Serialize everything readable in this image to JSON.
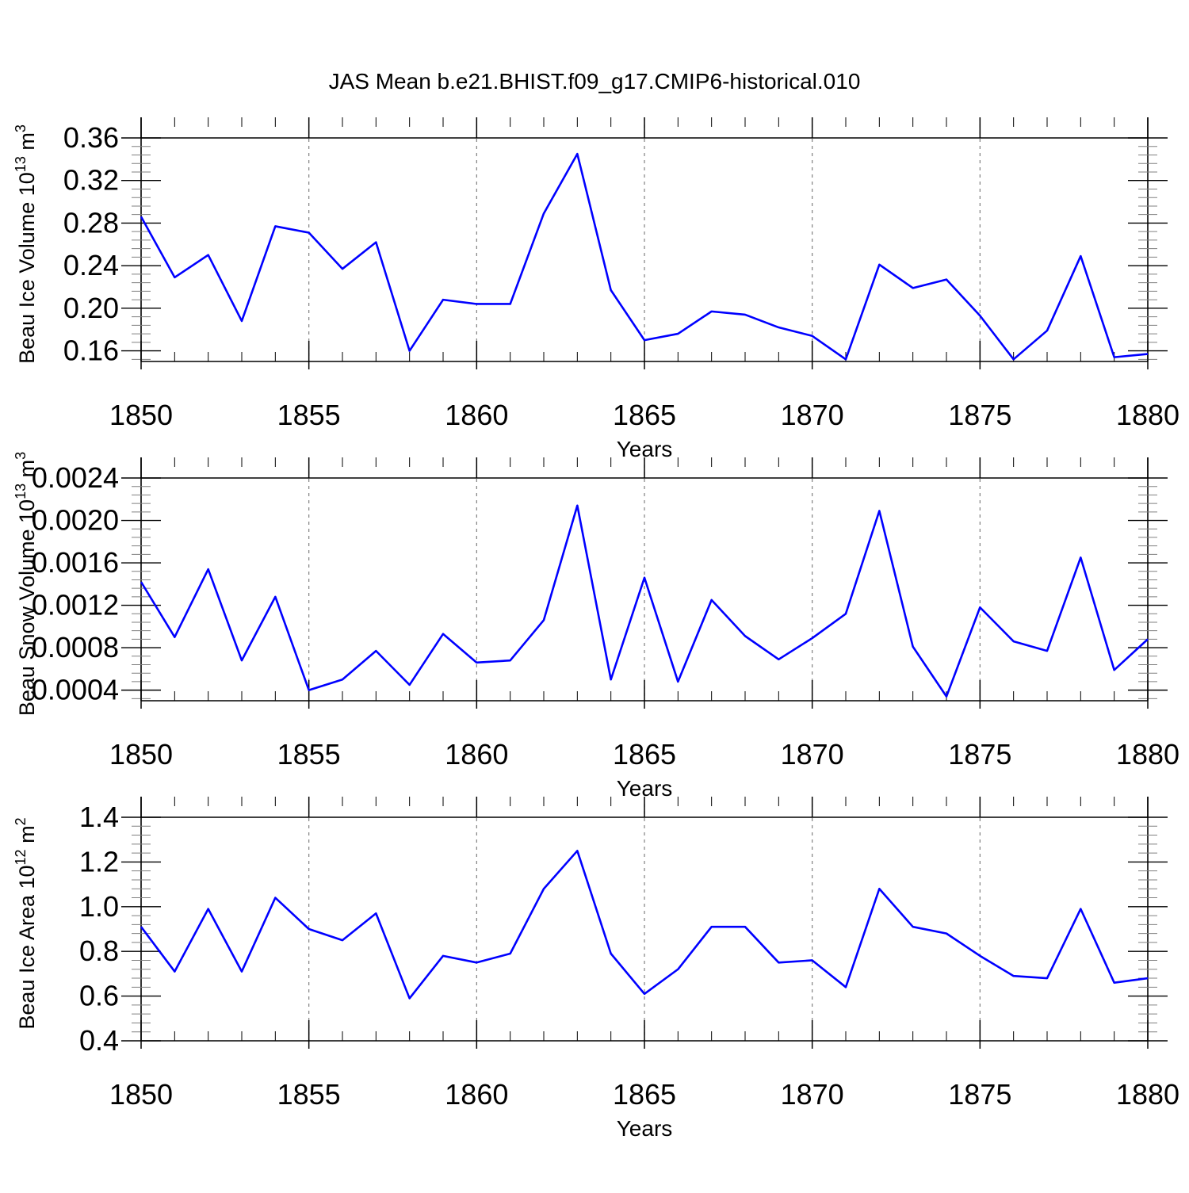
{
  "figure": {
    "title": "JAS Mean b.e21.BHIST.f09_g17.CMIP6-historical.010"
  },
  "colors": {
    "line": "#0000ff",
    "axis": "#000000",
    "grid": "#808080",
    "background": "#ffffff"
  },
  "chart_data": [
    {
      "type": "line",
      "title": "JAS Mean b.e21.BHIST.f09_g17.CMIP6-historical.010",
      "xlabel": "Years",
      "ylabel": "Beau Ice Volume 10^13 m^3",
      "ylabel_parts": {
        "prefix": "Beau Ice Volume 10",
        "sup1": "13",
        "mid": " m",
        "sup2": "3"
      },
      "xlim": [
        1850,
        1880
      ],
      "ylim": [
        0.15,
        0.36
      ],
      "xticks": [
        1850,
        1855,
        1860,
        1865,
        1870,
        1875,
        1880
      ],
      "xtick_labels": [
        "1850",
        "1855",
        "1860",
        "1865",
        "1870",
        "1875",
        "1880"
      ],
      "yticks": [
        0.16,
        0.2,
        0.24,
        0.28,
        0.32,
        0.36
      ],
      "ytick_labels": [
        "0.16",
        "0.20",
        "0.24",
        "0.28",
        "0.32",
        "0.36"
      ],
      "x": [
        1850,
        1851,
        1852,
        1853,
        1854,
        1855,
        1856,
        1857,
        1858,
        1859,
        1860,
        1861,
        1862,
        1863,
        1864,
        1865,
        1866,
        1867,
        1868,
        1869,
        1870,
        1871,
        1872,
        1873,
        1874,
        1875,
        1876,
        1877,
        1878,
        1879,
        1880
      ],
      "series": [
        {
          "name": "Beau Ice Volume",
          "values": [
            0.286,
            0.229,
            0.25,
            0.188,
            0.277,
            0.271,
            0.237,
            0.262,
            0.16,
            0.208,
            0.204,
            0.204,
            0.289,
            0.345,
            0.217,
            0.17,
            0.176,
            0.197,
            0.194,
            0.182,
            0.174,
            0.152,
            0.241,
            0.219,
            0.227,
            0.193,
            0.152,
            0.179,
            0.249,
            0.154,
            0.157
          ]
        }
      ]
    },
    {
      "type": "line",
      "title": "",
      "xlabel": "Years",
      "ylabel": "Beau Snow Volume 10^13 m^3",
      "ylabel_parts": {
        "prefix": "Beau Snow Volume 10",
        "sup1": "13",
        "mid": " m",
        "sup2": "3"
      },
      "xlim": [
        1850,
        1880
      ],
      "ylim": [
        0.0003,
        0.0024
      ],
      "xticks": [
        1850,
        1855,
        1860,
        1865,
        1870,
        1875,
        1880
      ],
      "xtick_labels": [
        "1850",
        "1855",
        "1860",
        "1865",
        "1870",
        "1875",
        "1880"
      ],
      "yticks": [
        0.0004,
        0.0008,
        0.0012,
        0.0016,
        0.002,
        0.0024
      ],
      "ytick_labels": [
        "0.0004",
        "0.0008",
        "0.0012",
        "0.0016",
        "0.0020",
        "0.0024"
      ],
      "x": [
        1850,
        1851,
        1852,
        1853,
        1854,
        1855,
        1856,
        1857,
        1858,
        1859,
        1860,
        1861,
        1862,
        1863,
        1864,
        1865,
        1866,
        1867,
        1868,
        1869,
        1870,
        1871,
        1872,
        1873,
        1874,
        1875,
        1876,
        1877,
        1878,
        1879,
        1880
      ],
      "series": [
        {
          "name": "Beau Snow Volume",
          "values": [
            0.00142,
            0.0009,
            0.00154,
            0.00068,
            0.00128,
            0.0004,
            0.0005,
            0.00077,
            0.00045,
            0.00093,
            0.00066,
            0.00068,
            0.00106,
            0.00214,
            0.0005,
            0.00146,
            0.00048,
            0.00125,
            0.00091,
            0.00069,
            0.00089,
            0.00112,
            0.00209,
            0.00081,
            0.00034,
            0.00118,
            0.00086,
            0.00077,
            0.00165,
            0.00059,
            0.00088
          ]
        }
      ]
    },
    {
      "type": "line",
      "title": "",
      "xlabel": "Years",
      "ylabel": "Beau Ice Area 10^12 m^2",
      "ylabel_parts": {
        "prefix": "Beau Ice Area 10",
        "sup1": "12",
        "mid": " m",
        "sup2": "2"
      },
      "xlim": [
        1850,
        1880
      ],
      "ylim": [
        0.4,
        1.4
      ],
      "xticks": [
        1850,
        1855,
        1860,
        1865,
        1870,
        1875,
        1880
      ],
      "xtick_labels": [
        "1850",
        "1855",
        "1860",
        "1865",
        "1870",
        "1875",
        "1880"
      ],
      "yticks": [
        0.4,
        0.6,
        0.8,
        1.0,
        1.2,
        1.4
      ],
      "ytick_labels": [
        "0.4",
        "0.6",
        "0.8",
        "1.0",
        "1.2",
        "1.4"
      ],
      "x": [
        1850,
        1851,
        1852,
        1853,
        1854,
        1855,
        1856,
        1857,
        1858,
        1859,
        1860,
        1861,
        1862,
        1863,
        1864,
        1865,
        1866,
        1867,
        1868,
        1869,
        1870,
        1871,
        1872,
        1873,
        1874,
        1875,
        1876,
        1877,
        1878,
        1879,
        1880
      ],
      "series": [
        {
          "name": "Beau Ice Area",
          "values": [
            0.91,
            0.71,
            0.99,
            0.71,
            1.04,
            0.9,
            0.85,
            0.97,
            0.59,
            0.78,
            0.75,
            0.79,
            1.08,
            1.25,
            0.79,
            0.61,
            0.72,
            0.91,
            0.91,
            0.75,
            0.76,
            0.64,
            1.08,
            0.91,
            0.88,
            0.78,
            0.69,
            0.68,
            0.99,
            0.66,
            0.68
          ]
        }
      ]
    }
  ]
}
